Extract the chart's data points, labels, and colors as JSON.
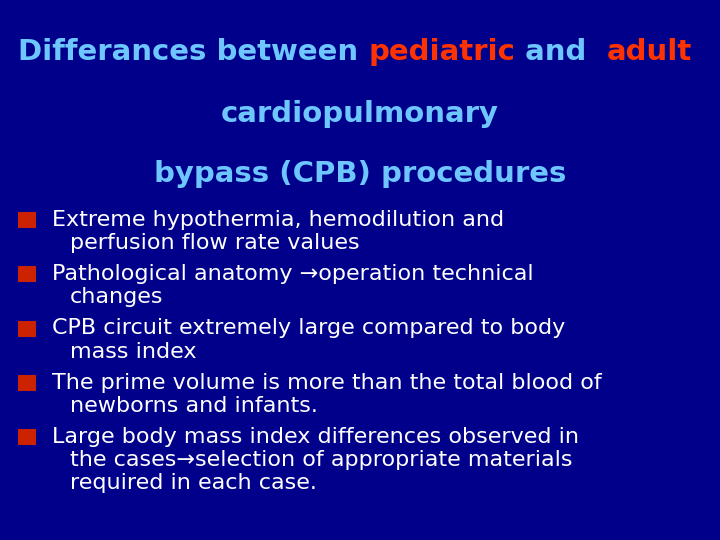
{
  "background_color": "#00008B",
  "t1": "Differances between ",
  "t2": "pediatric",
  "t3": " and  ",
  "t4": "adult",
  "title_line2": "cardiopulmonary",
  "title_line3": "bypass (CPB) procedures",
  "title_color_normal": "#6EC6FF",
  "title_color_red": "#FF3300",
  "bullet_color": "#CC2200",
  "bullet_text_color": "#FFFFFF",
  "bullet_lines": [
    [
      "Extreme hypothermia, hemodilution and",
      "perfusion flow rate values"
    ],
    [
      "Pathological anatomy →operation technical",
      "changes"
    ],
    [
      "CPB circuit extremely large compared to body",
      "mass index"
    ],
    [
      "The prime volume is more than the total blood of",
      "newborns and infants."
    ],
    [
      "Large body mass index differences observed in",
      "the cases→selection of appropriate materials",
      "required in each case."
    ]
  ],
  "title_fontsize": 21,
  "bullet_fontsize": 16,
  "fig_width": 7.2,
  "fig_height": 5.4,
  "dpi": 100
}
